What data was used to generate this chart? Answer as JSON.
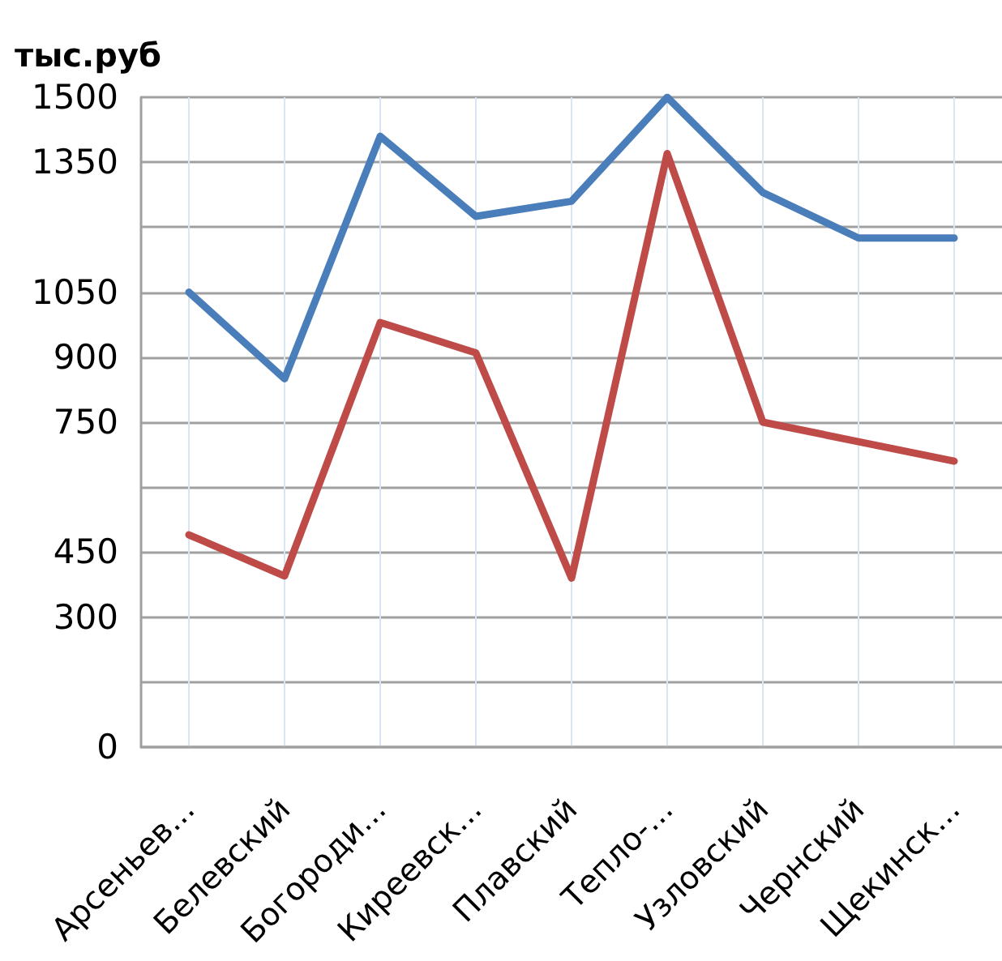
{
  "chart_data": {
    "type": "line",
    "ylabel": "тыс.руб",
    "categories": [
      "Арсеньев...",
      "Белевский",
      "Богороди...",
      "Киреевск...",
      "Плавский",
      "Тепло-...",
      "Узловский",
      "Чернский",
      "Щекинск..."
    ],
    "series": [
      {
        "color": "#4a7ebb",
        "values": [
          1050,
          850,
          1410,
          1225,
          1260,
          1500,
          1280,
          1175,
          1175
        ]
      },
      {
        "color": "#be4b48",
        "values": [
          490,
          395,
          980,
          910,
          390,
          1370,
          750,
          705,
          660
        ]
      }
    ],
    "ylim": [
      0,
      1500
    ],
    "yticks": [
      0,
      {
        "value": 150,
        "label": null
      },
      300,
      450,
      {
        "value": 600,
        "label": null
      },
      750,
      900,
      1050,
      {
        "value": 1200,
        "label": null
      },
      1350,
      1500
    ],
    "grid": true,
    "marker": "none",
    "line_style": "solid"
  }
}
